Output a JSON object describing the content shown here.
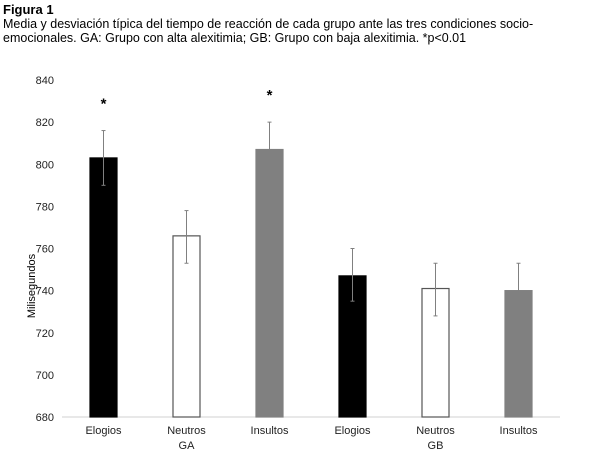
{
  "figure": {
    "label": "Figura 1",
    "caption": "Media y desviación típica del tiempo de reacción de cada grupo ante las tres condiciones socio-emocionales. GA: Grupo con alta alexitimia; GB: Grupo con baja alexitimia. *p<0.01"
  },
  "chart_data": {
    "type": "bar",
    "title": "",
    "xlabel": "",
    "ylabel": "Milisegundos",
    "ylim": [
      680,
      840
    ],
    "yticks": [
      680,
      700,
      720,
      740,
      760,
      780,
      800,
      820,
      840
    ],
    "grid": false,
    "groups": [
      "GA",
      "GB"
    ],
    "categories": [
      "Elogios",
      "Neutros",
      "Insultos",
      "Elogios",
      "Neutros",
      "Insultos"
    ],
    "bars": [
      {
        "group": "GA",
        "condition": "Elogios",
        "mean": 803,
        "sd_upper": 816,
        "sd_lower": 790,
        "fill": "#000000",
        "significant": true
      },
      {
        "group": "GA",
        "condition": "Neutros",
        "mean": 766,
        "sd_upper": 778,
        "sd_lower": 753,
        "fill": "#ffffff",
        "significant": false
      },
      {
        "group": "GA",
        "condition": "Insultos",
        "mean": 807,
        "sd_upper": 820,
        "sd_lower": 794,
        "fill": "#808080",
        "significant": true
      },
      {
        "group": "GB",
        "condition": "Elogios",
        "mean": 747,
        "sd_upper": 760,
        "sd_lower": 735,
        "fill": "#000000",
        "significant": false
      },
      {
        "group": "GB",
        "condition": "Neutros",
        "mean": 741,
        "sd_upper": 753,
        "sd_lower": 728,
        "fill": "#ffffff",
        "significant": false
      },
      {
        "group": "GB",
        "condition": "Insultos",
        "mean": 740,
        "sd_upper": 753,
        "sd_lower": 727,
        "fill": "#808080",
        "significant": false
      }
    ],
    "annotations": [
      "*",
      "*"
    ],
    "significance_marker": "*"
  }
}
